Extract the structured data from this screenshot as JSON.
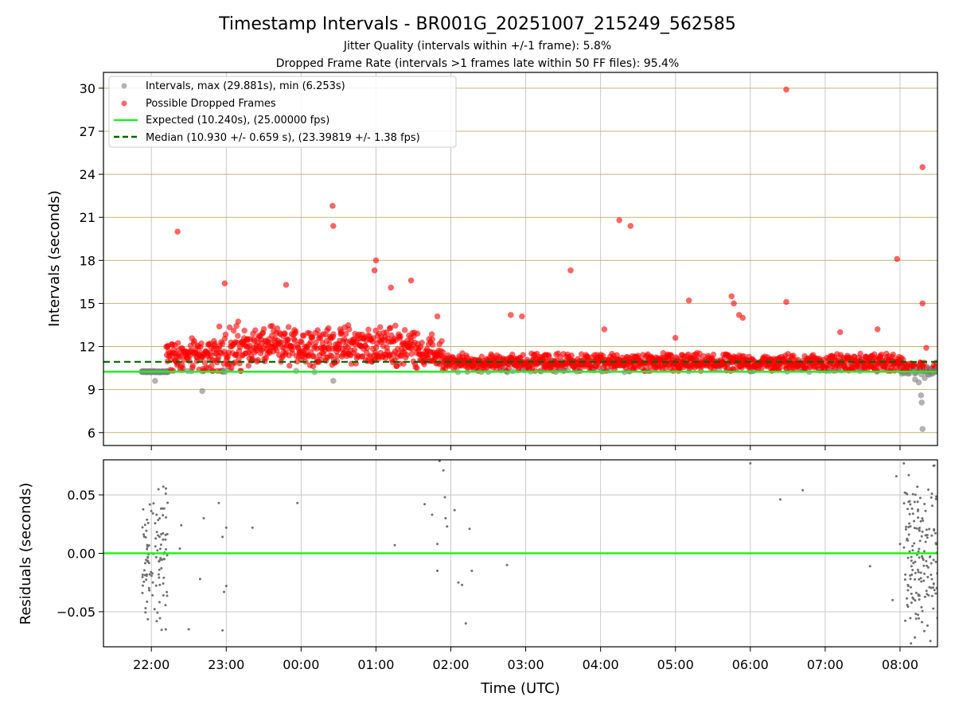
{
  "chart_data": {
    "title": "Timestamp Intervals - BR001G_20251007_215249_562585",
    "subtitles": [
      "Jitter Quality (intervals within +/-1 frame): 5.8%",
      "Dropped Frame Rate (intervals >1 frames late within 50 FF files): 95.4%"
    ],
    "xlabel": "Time (UTC)",
    "x_ticks": [
      "22:00",
      "23:00",
      "00:00",
      "01:00",
      "02:00",
      "03:00",
      "04:00",
      "05:00",
      "06:00",
      "07:00",
      "08:00"
    ],
    "x_range_hours": [
      -0.64,
      10.5
    ],
    "top": {
      "type": "scatter",
      "ylabel": "Intervals (seconds)",
      "ylim": [
        5.1,
        31.1
      ],
      "y_ticks": [
        6,
        9,
        12,
        15,
        18,
        21,
        24,
        27,
        30
      ],
      "grid": true,
      "legend": "top-left",
      "series": [
        {
          "name": "Intervals, max (29.881s), min (6.253s)",
          "color": "#808080"
        },
        {
          "name": "Possible Dropped Frames",
          "color": "#ff0000"
        },
        {
          "name": "Expected (10.240s), (25.00000 fps)",
          "color": "#22ee22",
          "value": 10.24
        },
        {
          "name": "Median (10.930 +/- 0.659 s), (23.39819 +/- 1.38 fps)",
          "color": "#006400",
          "value": 10.93
        }
      ],
      "outliers_dropped": [
        [
          0.35,
          20.0
        ],
        [
          0.98,
          16.4
        ],
        [
          1.8,
          16.3
        ],
        [
          2.42,
          21.8
        ],
        [
          2.43,
          20.4
        ],
        [
          3.0,
          18.0
        ],
        [
          2.98,
          17.3
        ],
        [
          3.2,
          16.1
        ],
        [
          3.47,
          16.6
        ],
        [
          3.82,
          14.1
        ],
        [
          5.6,
          17.3
        ],
        [
          6.25,
          20.8
        ],
        [
          6.4,
          20.4
        ],
        [
          7.18,
          15.2
        ],
        [
          7.75,
          15.5
        ],
        [
          7.78,
          15.0
        ],
        [
          8.48,
          29.9
        ],
        [
          8.48,
          15.1
        ],
        [
          9.96,
          18.1
        ],
        [
          10.3,
          24.5
        ],
        [
          10.3,
          15.0
        ],
        [
          10.35,
          11.9
        ],
        [
          4.8,
          14.2
        ],
        [
          4.95,
          14.1
        ],
        [
          6.05,
          13.2
        ],
        [
          7.0,
          12.6
        ],
        [
          7.85,
          14.2
        ],
        [
          7.9,
          14.0
        ],
        [
          9.2,
          13.0
        ],
        [
          9.7,
          13.2
        ]
      ],
      "outliers_normal": [
        [
          0.05,
          9.6
        ],
        [
          0.68,
          8.9
        ],
        [
          2.43,
          9.6
        ],
        [
          10.25,
          9.5
        ],
        [
          10.28,
          8.6
        ],
        [
          10.29,
          8.1
        ],
        [
          10.3,
          6.253
        ],
        [
          10.33,
          9.8
        ],
        [
          10.2,
          9.7
        ]
      ]
    },
    "bottom": {
      "type": "scatter",
      "ylabel": "Residuals (seconds)",
      "ylim": [
        -0.08,
        0.08
      ],
      "y_ticks": [
        "−0.05",
        "0.00",
        "0.05"
      ],
      "y_tick_values": [
        -0.05,
        0.0,
        0.05
      ],
      "zero_line_color": "#22ee22",
      "points": [
        [
          0.9,
          0.043
        ],
        [
          0.95,
          0.014
        ],
        [
          1.0,
          0.022
        ],
        [
          0.97,
          -0.033
        ],
        [
          1.0,
          -0.028
        ],
        [
          0.95,
          -0.066
        ],
        [
          0.4,
          0.024
        ],
        [
          0.38,
          0.004
        ],
        [
          0.5,
          -0.065
        ],
        [
          0.7,
          0.03
        ],
        [
          0.65,
          -0.022
        ],
        [
          1.35,
          0.022
        ],
        [
          1.95,
          0.043
        ],
        [
          3.25,
          0.007
        ],
        [
          3.65,
          0.042
        ],
        [
          3.75,
          0.033
        ],
        [
          3.82,
          -0.015
        ],
        [
          3.85,
          0.079
        ],
        [
          3.9,
          0.071
        ],
        [
          3.92,
          0.048
        ],
        [
          3.93,
          0.03
        ],
        [
          3.95,
          0.023
        ],
        [
          3.82,
          0.008
        ],
        [
          4.05,
          0.037
        ],
        [
          4.1,
          -0.025
        ],
        [
          4.15,
          -0.027
        ],
        [
          4.25,
          0.021
        ],
        [
          4.28,
          -0.015
        ],
        [
          4.2,
          -0.06
        ],
        [
          4.75,
          -0.01
        ],
        [
          8.0,
          0.077
        ],
        [
          8.4,
          0.046
        ],
        [
          8.7,
          0.054
        ],
        [
          9.6,
          -0.011
        ],
        [
          9.95,
          0.066
        ],
        [
          10.05,
          0.077
        ],
        [
          10.0,
          0.008
        ],
        [
          9.9,
          -0.04
        ]
      ]
    }
  }
}
